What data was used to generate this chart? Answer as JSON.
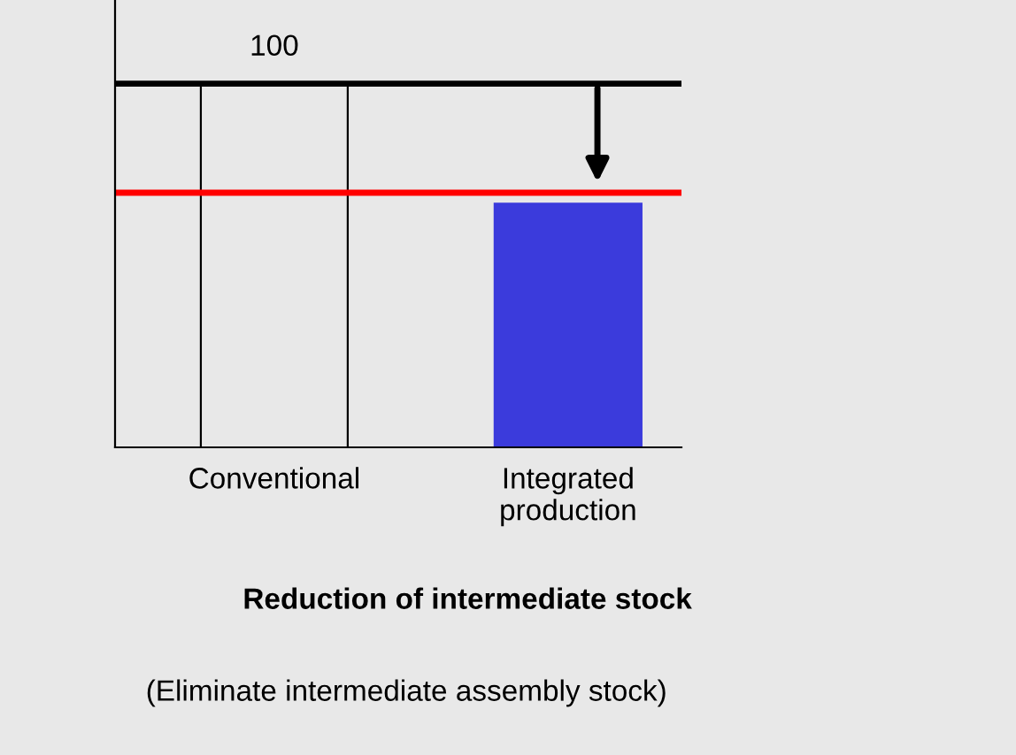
{
  "chart_data": {
    "type": "bar",
    "title": "Reduction of intermediate stock",
    "categories": [
      "Conventional",
      "Integrated\nproduction"
    ],
    "values": [
      100,
      67
    ],
    "colors": [
      "#e8e8e8",
      "#3b3bdc"
    ],
    "value_labels": [
      "100",
      null
    ],
    "ylim": [
      0,
      123
    ],
    "tick_labels": "x",
    "ref_lines": [
      {
        "axis": "y",
        "value": 100,
        "label": null,
        "color": "#000000"
      },
      {
        "axis": "y",
        "value": 70,
        "label": null,
        "color": "#ff0000"
      }
    ],
    "annotations": [
      "(Eliminate intermediate assembly stock)"
    ]
  }
}
